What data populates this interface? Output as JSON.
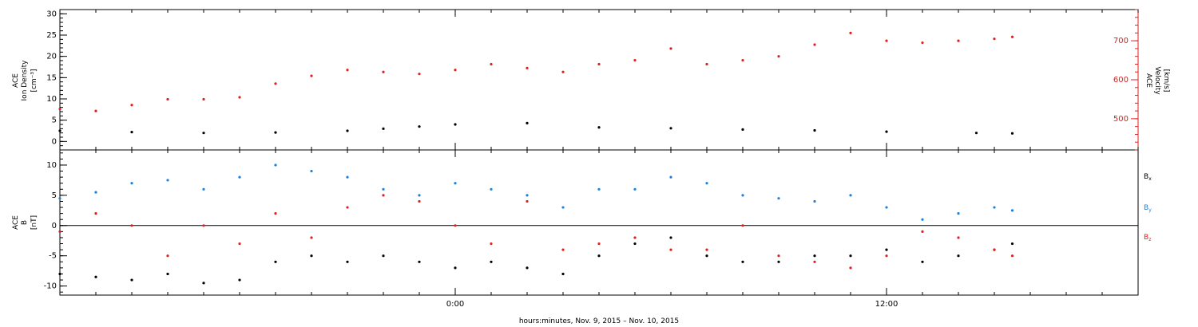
{
  "colors": {
    "axis": "#000000",
    "density": "#000000",
    "velocity": "#e0201e",
    "bx": "#000000",
    "by": "#1a82dc",
    "bz": "#e0201e"
  },
  "chart_data": [
    {
      "type": "scatter",
      "panel": "top",
      "ylabel_left": [
        "ACE",
        "Ion Density",
        "[cm⁻³]"
      ],
      "ylabel_right": [
        "ACE",
        "Velocity",
        "[km/s]"
      ],
      "x_range_hours": [
        -11,
        19
      ],
      "ylim_left": [
        -2,
        31
      ],
      "yticks_left": [
        "0",
        "5",
        "10",
        "15",
        "20",
        "25",
        "30"
      ],
      "ylim_right": [
        420,
        780
      ],
      "yticks_right": [
        "500",
        "600",
        "700"
      ],
      "series": [
        {
          "key": "density",
          "axis": "left",
          "x": [
            -11,
            -9,
            -7,
            -5,
            -3,
            -2,
            -1,
            0,
            2,
            4,
            6,
            8,
            10,
            12,
            14.5,
            15.5
          ],
          "y": [
            2.5,
            2.2,
            2.0,
            2.1,
            2.5,
            3.0,
            3.5,
            4.0,
            4.3,
            3.3,
            3.1,
            2.8,
            2.6,
            2.3,
            2.0,
            1.9
          ]
        },
        {
          "key": "velocity",
          "axis": "right",
          "x": [
            -11,
            -10,
            -9,
            -8,
            -7,
            -6,
            -5,
            -4,
            -3,
            -2,
            -1,
            0,
            1,
            2,
            3,
            4,
            5,
            6,
            7,
            8,
            9,
            10,
            11,
            12,
            13,
            14,
            15,
            15.5
          ],
          "y": [
            525,
            520,
            535,
            550,
            550,
            555,
            590,
            610,
            625,
            620,
            615,
            625,
            640,
            630,
            620,
            640,
            650,
            680,
            640,
            650,
            660,
            690,
            720,
            700,
            695,
            700,
            705,
            710
          ]
        }
      ]
    },
    {
      "type": "scatter",
      "panel": "bottom",
      "ylabel_left": [
        "ACE",
        "B",
        "[nT]"
      ],
      "x_range_hours": [
        -11,
        19
      ],
      "ylim_left": [
        -11.5,
        12.5
      ],
      "yticks_left": [
        "-10",
        "-5",
        "0",
        "5",
        "10"
      ],
      "xticks": [
        "0:00",
        "12:00"
      ],
      "xlabel": "hours:minutes, Nov.  9, 2015 – Nov. 10, 2015",
      "zero_line": true,
      "series": [
        {
          "key": "bx",
          "name": "B",
          "sub": "x",
          "x": [
            -11,
            -10,
            -9,
            -8,
            -7,
            -6,
            -5,
            -4,
            -3,
            -2,
            -1,
            0,
            1,
            2,
            3,
            4,
            5,
            6,
            7,
            8,
            9,
            10,
            11,
            12,
            13,
            14,
            15,
            15.5
          ],
          "y": [
            -8,
            -8.5,
            -9,
            -8,
            -9.5,
            -9,
            -6,
            -5,
            -6,
            -5,
            -6,
            -7,
            -6,
            -7,
            -8,
            -5,
            -3,
            -2,
            -5,
            -6,
            -6,
            -5,
            -5,
            -4,
            -6,
            -5,
            -4,
            -3
          ]
        },
        {
          "key": "by",
          "name": "B",
          "sub": "y",
          "x": [
            -11,
            -10,
            -9,
            -8,
            -7,
            -6,
            -5,
            -4,
            -3,
            -2,
            -1,
            0,
            1,
            2,
            3,
            4,
            5,
            6,
            7,
            8,
            9,
            10,
            11,
            12,
            13,
            14,
            15,
            15.5
          ],
          "y": [
            4.5,
            5.5,
            7,
            7.5,
            6,
            8,
            10,
            9,
            8,
            6,
            5,
            7,
            6,
            5,
            3,
            6,
            6,
            8,
            7,
            5,
            4.5,
            4,
            5,
            3,
            1,
            2,
            3,
            2.5
          ]
        },
        {
          "key": "bz",
          "name": "B",
          "sub": "z",
          "x": [
            -11,
            -10,
            -9,
            -8,
            -7,
            -6,
            -5,
            -4,
            -3,
            -2,
            -1,
            0,
            1,
            2,
            3,
            4,
            5,
            6,
            7,
            8,
            9,
            10,
            11,
            12,
            13,
            14,
            15,
            15.5
          ],
          "y": [
            -1,
            2,
            0,
            -5,
            0,
            -3,
            2,
            -2,
            3,
            5,
            4,
            0,
            -3,
            4,
            -4,
            -3,
            -2,
            -4,
            -4,
            0,
            -5,
            -6,
            -7,
            -5,
            -1,
            -2,
            -4,
            -5
          ]
        }
      ]
    }
  ]
}
